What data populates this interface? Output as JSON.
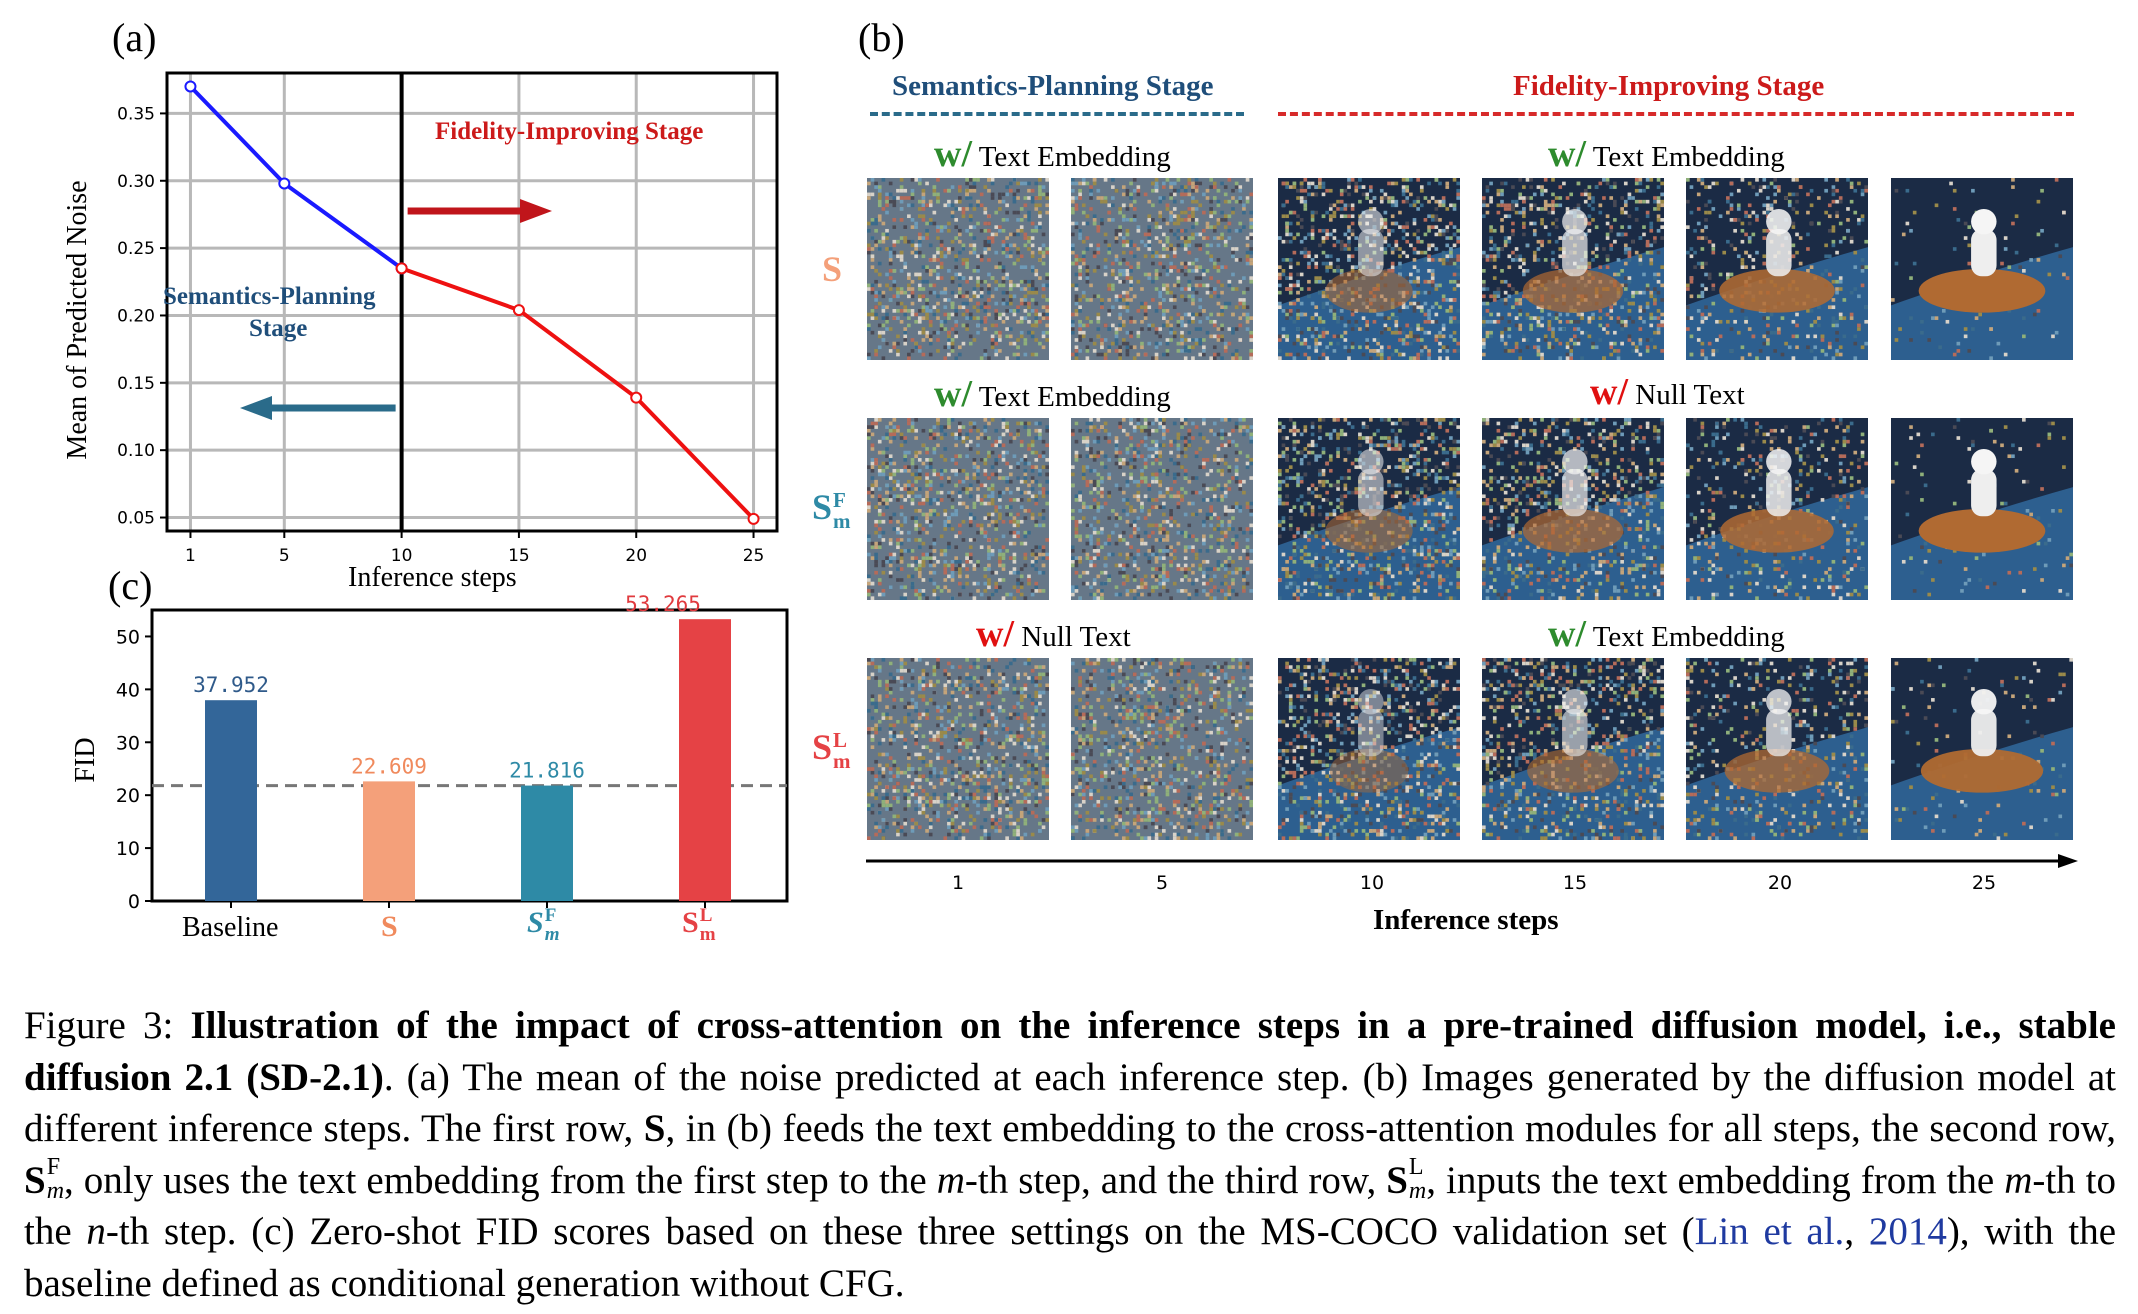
{
  "panel_labels": {
    "a": "(a)",
    "b": "(b)",
    "c": "(c)"
  },
  "chart_data": [
    {
      "id": "a",
      "type": "line",
      "title": "",
      "xlabel": "Inference steps",
      "ylabel": "Mean of Predicted Noise",
      "xlim": [
        0,
        26
      ],
      "ylim": [
        0.04,
        0.38
      ],
      "x_ticks": [
        1,
        5,
        10,
        15,
        20,
        25
      ],
      "y_ticks": [
        0.05,
        0.1,
        0.15,
        0.2,
        0.25,
        0.3,
        0.35
      ],
      "y_tick_labels": [
        "0.05",
        "0.10",
        "0.15",
        "0.20",
        "0.25",
        "0.30",
        "0.35"
      ],
      "grid": true,
      "series": [
        {
          "name": "semantics-planning",
          "color": "#1a1aff",
          "x": [
            1,
            5,
            10
          ],
          "values": [
            0.37,
            0.298,
            0.235
          ]
        },
        {
          "name": "fidelity-improving",
          "color": "#ee1111",
          "x": [
            10,
            15,
            20,
            25
          ],
          "values": [
            0.235,
            0.204,
            0.139,
            0.049
          ]
        }
      ],
      "divider_x": 10,
      "annotations": {
        "fidelity": "Fidelity-Improving Stage",
        "semantics_line1": "Semantics-Planning",
        "semantics_line2": "Stage"
      },
      "colors": {
        "fidelity_arrow": "#c0151b",
        "semantics_arrow": "#2a6b8a",
        "fidelity_text": "#cc1a1a",
        "semantics_text": "#1f4e7a"
      }
    },
    {
      "id": "c",
      "type": "bar",
      "ylabel": "FID",
      "ylim": [
        0,
        55
      ],
      "y_ticks": [
        0,
        10,
        20,
        30,
        40,
        50
      ],
      "categories": [
        "Baseline",
        "S",
        "S_m^F",
        "S_m^L"
      ],
      "values": [
        37.952,
        22.609,
        21.816,
        53.265
      ],
      "value_labels": [
        "37.952",
        "22.609",
        "21.816",
        "53.265"
      ],
      "bar_colors": [
        "#336699",
        "#f4a07a",
        "#2e8aa6",
        "#e54245"
      ],
      "label_colors": [
        "#2f5a8a",
        "#f08a5d",
        "#2e8aa6",
        "#e03a3e"
      ],
      "reference_line": 21.816,
      "grid": false
    }
  ],
  "panel_b": {
    "stage_semantics": "Semantics-Planning Stage",
    "stage_fidelity": "Fidelity-Improving Stage",
    "w_prefix": "w/",
    "text_embedding": "Text Embedding",
    "null_text": "Null Text",
    "row_labels": {
      "s": "S",
      "sf_base": "S",
      "sf_sub": "m",
      "sf_sup": "F",
      "sl_base": "S",
      "sl_sub": "m",
      "sl_sup": "L"
    },
    "x_ticks": [
      "1",
      "5",
      "10",
      "15",
      "20",
      "25"
    ],
    "x_axis_label": "Inference steps",
    "colors": {
      "semantics": "#1f4e7a",
      "fidelity": "#cc1a1a",
      "green": "#2e8b2e",
      "red": "#e01010",
      "s": "#f4a07a",
      "sf": "#2e8aa6",
      "sl": "#e54245"
    }
  },
  "bar_tick_labels": {
    "baseline": "Baseline",
    "s": "S",
    "base": "S",
    "m": "m",
    "f": "F",
    "l": "L"
  },
  "caption": {
    "fig": "Figure 3:",
    "bold": "Illustration of the impact of cross-attention on the inference steps in a pre-trained diffusion model, i.e., stable diffusion 2.1 (SD-2.1)",
    "t1": ". (a) The mean of the noise predicted at each inference step. (b) Images generated by the diffusion model at different inference steps. The first row,",
    "t2": ", in (b) feeds the text embedding to the cross-attention modules for all steps, the second row,",
    "t3": ", only uses the text embedding from the first step to the",
    "t4": "-th step, and the third row,",
    "t5": ", inputs the text embedding from the",
    "t6": "-th to the",
    "t7": "-th step. (c) Zero-shot FID scores based on these three settings on the MS-COCO validation set (",
    "cite_author": "Lin et al.",
    "cite_sep": ", ",
    "cite_year": "2014",
    "t8": "), with the baseline defined as conditional generation without CFG.",
    "S": "S",
    "m": "m",
    "n": "n",
    "F": "F",
    "L": "L"
  }
}
